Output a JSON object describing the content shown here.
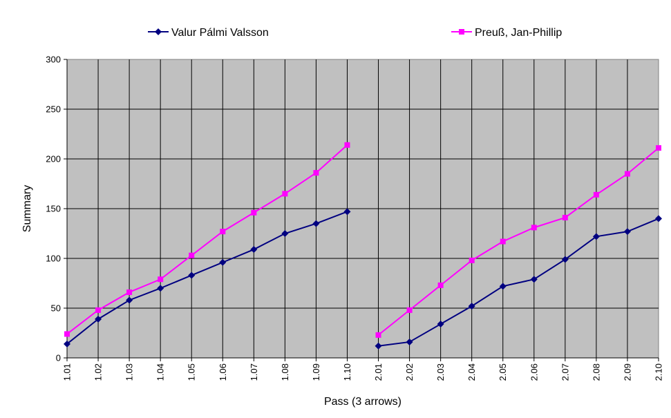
{
  "chart_data": {
    "type": "line",
    "xlabel": "Pass (3 arrows)",
    "ylabel": "Summary",
    "ylim": [
      0,
      300
    ],
    "yticks": [
      "0",
      "50",
      "100",
      "150",
      "200",
      "250",
      "300"
    ],
    "categories": [
      "1.01",
      "1.02",
      "1.03",
      "1.04",
      "1.05",
      "1.06",
      "1.07",
      "1.08",
      "1.09",
      "1.10",
      "2.01",
      "2.02",
      "2.03",
      "2.04",
      "2.05",
      "2.06",
      "2.07",
      "2.08",
      "2.09",
      "2.10"
    ],
    "grid": true,
    "background": "#c0c0c0",
    "legend_position": "top",
    "series": [
      {
        "name": "Valur Pálmi Valsson",
        "color": "#000080",
        "marker": "diamond",
        "values": [
          14,
          39,
          58,
          70,
          83,
          96,
          109,
          125,
          135,
          147,
          12,
          16,
          34,
          52,
          72,
          79,
          99,
          122,
          127,
          140
        ]
      },
      {
        "name": "Preuß, Jan-Phillip",
        "color": "#ff00ff",
        "marker": "square",
        "values": [
          24,
          48,
          66,
          79,
          103,
          127,
          146,
          165,
          186,
          214,
          23,
          48,
          73,
          98,
          117,
          131,
          141,
          164,
          185,
          211
        ]
      }
    ]
  }
}
